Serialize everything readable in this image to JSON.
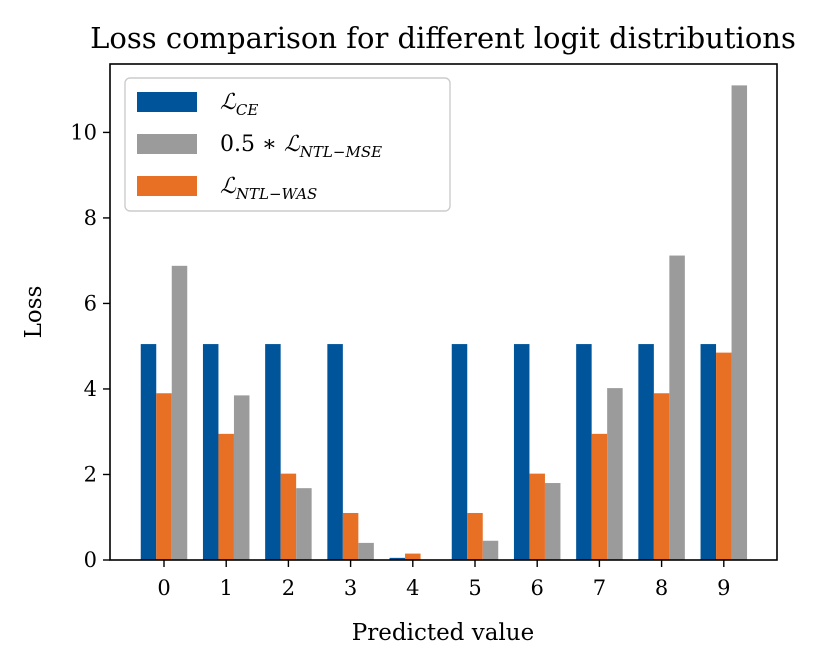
{
  "chart_data": {
    "type": "bar",
    "title": "Loss comparison for different logit distributions",
    "xlabel": "Predicted value",
    "ylabel": "Loss",
    "categories": [
      "0",
      "1",
      "2",
      "3",
      "4",
      "5",
      "6",
      "7",
      "8",
      "9"
    ],
    "ylim": [
      0,
      11.6
    ],
    "yticks": [
      "0",
      "2",
      "4",
      "6",
      "8",
      "10"
    ],
    "grid": false,
    "legend_position": "top-left",
    "series": [
      {
        "name": "ℒ_CE",
        "legend_main": "ℒ",
        "legend_sub": "CE",
        "legend_prefix": "",
        "color": "#00549a",
        "values": [
          5.05,
          5.05,
          5.05,
          5.05,
          0.05,
          5.05,
          5.05,
          5.05,
          5.05,
          5.05
        ]
      },
      {
        "name": "ℒ_NTL−WAS",
        "legend_main": "ℒ",
        "legend_sub": "NTL−WAS",
        "legend_prefix": "",
        "color": "#e87025",
        "values": [
          3.9,
          2.95,
          2.02,
          1.1,
          0.15,
          1.1,
          2.02,
          2.95,
          3.9,
          4.85
        ]
      },
      {
        "name": "0.5 ∗ ℒ_NTL−MSE",
        "legend_main": "ℒ",
        "legend_sub": "NTL−MSE",
        "legend_prefix": "0.5 ∗ ",
        "color": "#9b9b9b",
        "values": [
          6.88,
          3.85,
          1.68,
          0.4,
          0.0,
          0.45,
          1.8,
          4.02,
          7.12,
          11.1
        ]
      }
    ],
    "legend_order": [
      0,
      2,
      1
    ]
  }
}
